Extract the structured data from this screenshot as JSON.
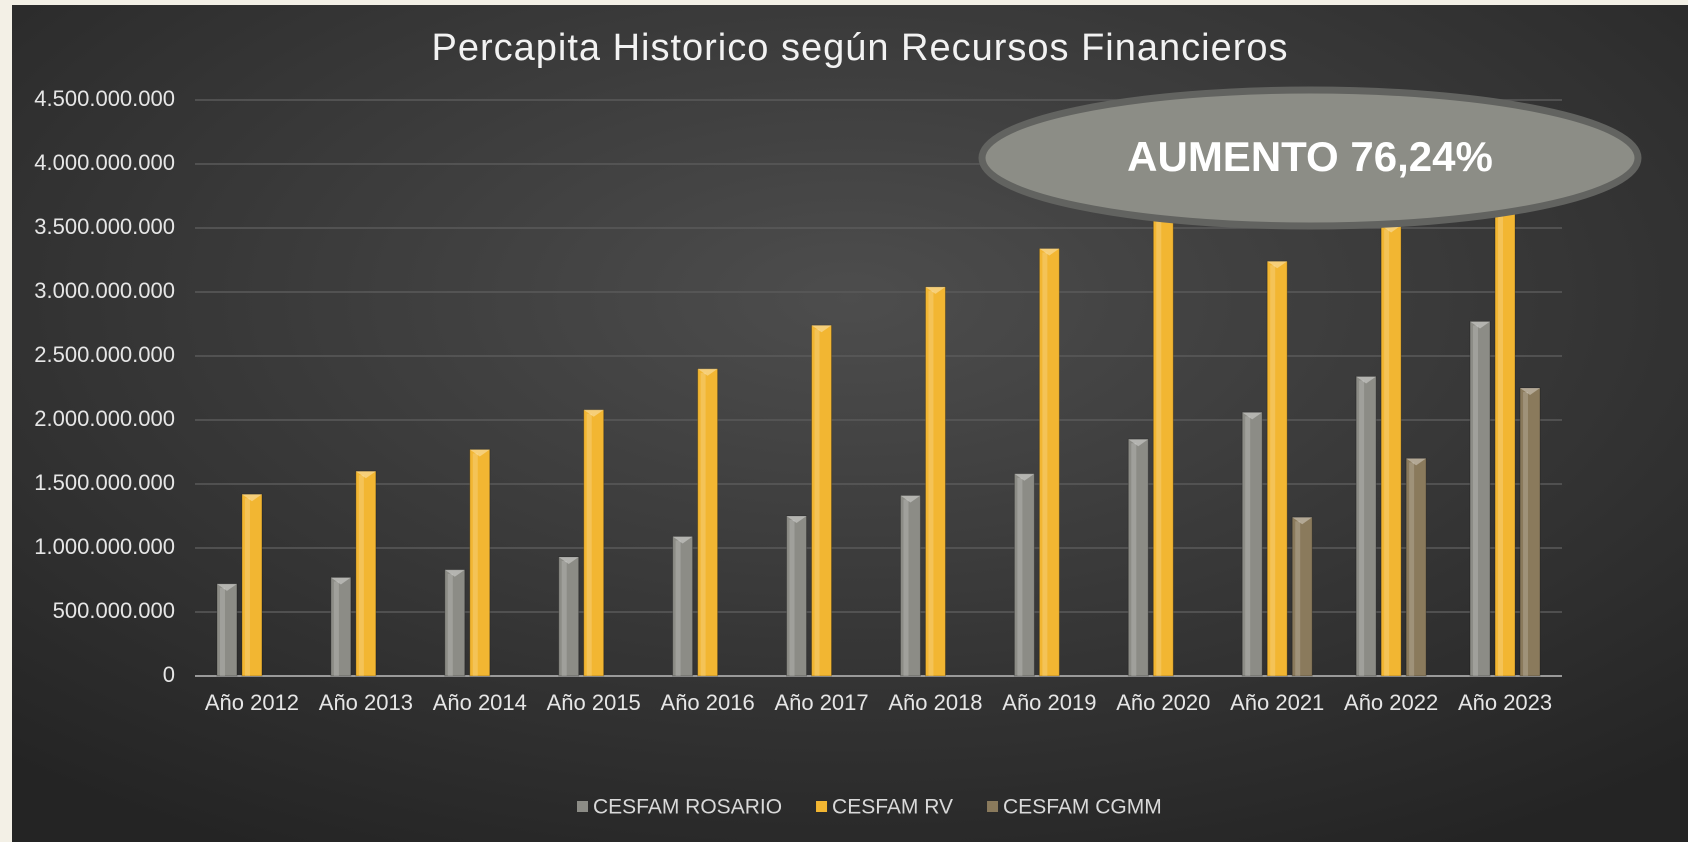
{
  "chart_data": {
    "type": "bar",
    "title": "Percapita Historico según Recursos Financieros",
    "annotation": "AUMENTO 76,24%",
    "categories": [
      "Año 2012",
      "Año 2013",
      "Año 2014",
      "Año 2015",
      "Año 2016",
      "Año 2017",
      "Año 2018",
      "Año 2019",
      "Año 2020",
      "Año 2021",
      "Año 2022",
      "Año 2023"
    ],
    "series": [
      {
        "name": "CESFAM ROSARIO",
        "color": "#8c8c86",
        "values": [
          720000000,
          770000000,
          830000000,
          930000000,
          1090000000,
          1250000000,
          1410000000,
          1580000000,
          1850000000,
          2060000000,
          2340000000,
          2770000000
        ]
      },
      {
        "name": "CESFAM RV",
        "color": "#f2b632",
        "values": [
          1420000000,
          1600000000,
          1770000000,
          2080000000,
          2400000000,
          2740000000,
          3040000000,
          3340000000,
          3800000000,
          3240000000,
          3520000000,
          4100000000
        ]
      },
      {
        "name": "CESFAM CGMM",
        "color": "#8a7a5c",
        "values": [
          null,
          null,
          null,
          null,
          null,
          null,
          null,
          null,
          null,
          1240000000,
          1700000000,
          2250000000
        ]
      }
    ],
    "ylim": [
      0,
      4500000000
    ],
    "yticks": [
      0,
      {
        "value": 500000000,
        "label": "500.000.000"
      },
      {
        "value": 1000000000,
        "label": "1.000.000.000"
      },
      {
        "value": 1500000000,
        "label": "1.500.000.000"
      },
      {
        "value": 2000000000,
        "label": "2.000.000.000"
      },
      {
        "value": 2500000000,
        "label": "2.500.000.000"
      },
      {
        "value": 3000000000,
        "label": "3.000.000.000"
      },
      {
        "value": 3500000000,
        "label": "3.500.000.000"
      },
      {
        "value": 4000000000,
        "label": "4.000.000.000"
      },
      {
        "value": 4500000000,
        "label": "4.500.000.000"
      }
    ],
    "grid": true,
    "legend": "bottom"
  }
}
